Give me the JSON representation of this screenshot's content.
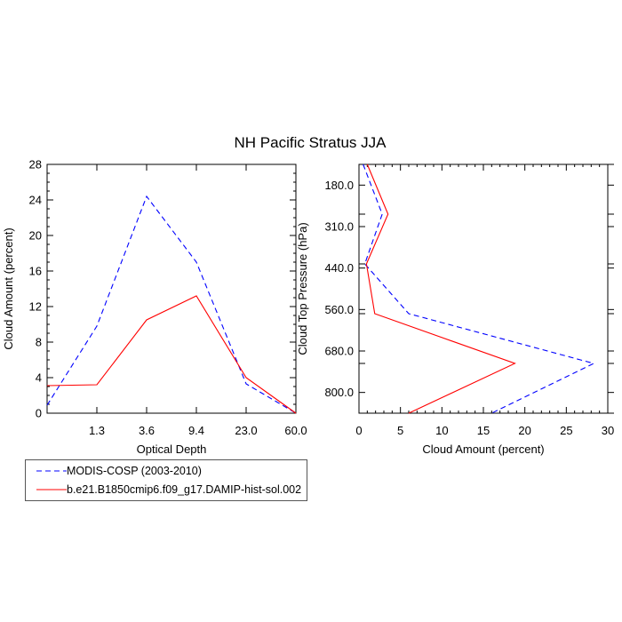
{
  "chart_data": {
    "title": "NH Pacific Stratus JJA",
    "legend_position": "bottom-left",
    "colors": {
      "obs": "#0000ff",
      "model": "#ff0000"
    },
    "series_names": [
      "MODIS-COSP (2003-2010)",
      "b.e21.B1850cmip6.f09_g17.DAMIP-hist-sol.002"
    ],
    "panels": [
      {
        "type": "line",
        "xlabel": "Optical Depth",
        "ylabel": "Cloud Amount (percent)",
        "xtick_labels": [
          "1.3",
          "3.6",
          "9.4",
          "23.0",
          "60.0"
        ],
        "ylim": [
          0,
          28
        ],
        "yticks": [
          "0",
          "4",
          "8",
          "12",
          "16",
          "20",
          "24",
          "28"
        ],
        "grid": false,
        "series": [
          {
            "name": "MODIS-COSP (2003-2010)",
            "style": "dashed",
            "values": [
              0.9,
              9.8,
              24.4,
              17.0,
              3.3,
              0.0
            ]
          },
          {
            "name": "b.e21.B1850cmip6.f09_g17.DAMIP-hist-sol.002",
            "style": "solid",
            "values": [
              3.1,
              3.2,
              10.5,
              13.2,
              4.0,
              0.0
            ]
          }
        ]
      },
      {
        "type": "line",
        "xlabel": "Cloud Amount (percent)",
        "ylabel": "Cloud Top Pressure (hPa)",
        "xlim": [
          0,
          30
        ],
        "xticks": [
          "0",
          "5",
          "10",
          "15",
          "20",
          "25",
          "30"
        ],
        "ytick_labels": [
          "180.0",
          "310.0",
          "440.0",
          "560.0",
          "680.0",
          "800.0"
        ],
        "grid": false,
        "series": [
          {
            "name": "MODIS-COSP (2003-2010)",
            "style": "dashed",
            "values": [
              0.5,
              2.8,
              0.7,
              6.0,
              28.3,
              16.0
            ]
          },
          {
            "name": "b.e21.B1850cmip6.f09_g17.DAMIP-hist-sol.002",
            "style": "solid",
            "values": [
              1.0,
              3.5,
              0.9,
              1.9,
              18.8,
              6.0
            ]
          }
        ]
      }
    ]
  }
}
